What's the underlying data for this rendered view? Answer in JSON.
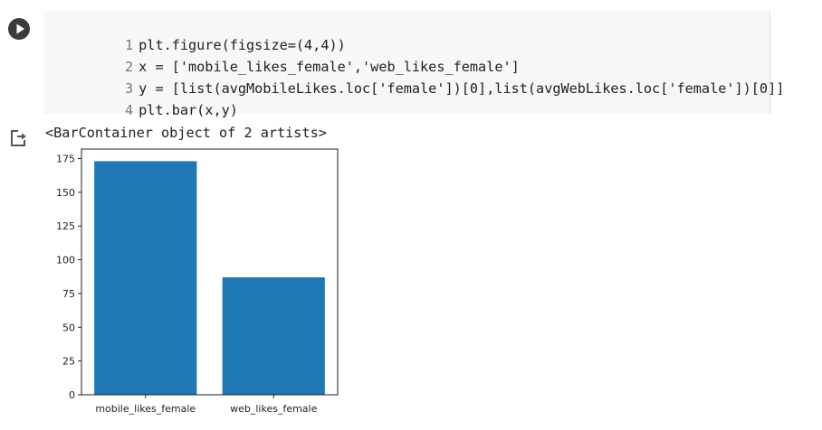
{
  "code_cell": {
    "run_icon": "play-icon",
    "lines": [
      {
        "number": "1",
        "text": "plt.figure(figsize=(4,4))"
      },
      {
        "number": "2",
        "text": "x = ['mobile_likes_female','web_likes_female']"
      },
      {
        "number": "3",
        "text": "y = [list(avgMobileLikes.loc['female'])[0],list(avgWebLikes.loc['female'])[0]]"
      },
      {
        "number": "4",
        "text": "plt.bar(x,y)"
      }
    ]
  },
  "output": {
    "icon": "output-redirect-icon",
    "text": "<BarContainer object of 2 artists>"
  },
  "chart_data": {
    "type": "bar",
    "categories": [
      "mobile_likes_female",
      "web_likes_female"
    ],
    "values": [
      173,
      87
    ],
    "yticks": [
      0,
      25,
      50,
      75,
      100,
      125,
      150,
      175
    ],
    "ylim": [
      0,
      182
    ],
    "title": "",
    "xlabel": "",
    "ylabel": "",
    "bar_color": "#1f77b4",
    "grid": false
  }
}
